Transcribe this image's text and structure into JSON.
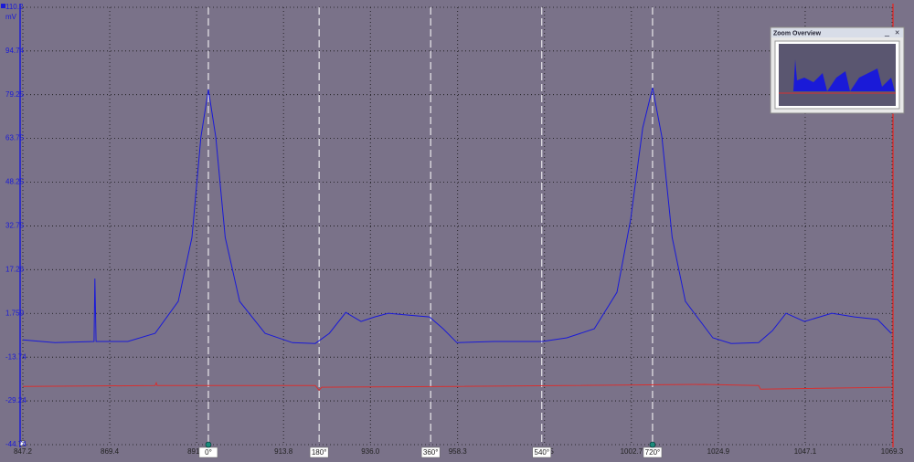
{
  "chart_data": {
    "type": "line",
    "y_unit": "mV",
    "x": [
      847.2,
      855.4,
      865.4,
      865.6,
      865.9,
      874.0,
      881.0,
      886.9,
      890.4,
      892.7,
      894.6,
      896.5,
      898.9,
      902.6,
      909.1,
      916.1,
      921.9,
      925.5,
      929.7,
      933.6,
      937.1,
      940.6,
      945.3,
      951.1,
      954.6,
      958.1,
      967.5,
      979.9,
      986.2,
      993.2,
      999.0,
      1002.5,
      1005.6,
      1008.1,
      1010.5,
      1013.1,
      1016.5,
      1023.5,
      1028.2,
      1035.2,
      1038.7,
      1042.2,
      1046.9,
      1053.9,
      1059.7,
      1065.6,
      1069.1
    ],
    "series": [
      {
        "color": "#1a1ad8",
        "values": [
          -7.6,
          -8.6,
          -8.2,
          14.1,
          -8.2,
          -8.2,
          -5.3,
          6.0,
          28.7,
          64.2,
          81.1,
          64.2,
          28.7,
          6.0,
          -5.3,
          -8.6,
          -8.9,
          -5.3,
          2.1,
          -1.1,
          0.5,
          1.8,
          1.2,
          0.5,
          -3.7,
          -8.6,
          -8.2,
          -8.2,
          -6.9,
          -3.7,
          9.2,
          35.1,
          67.5,
          81.7,
          64.2,
          28.7,
          6.0,
          -6.9,
          -8.9,
          -8.6,
          -4.4,
          1.8,
          -1.1,
          1.8,
          0.5,
          -0.4,
          -5.3
        ]
      }
    ],
    "x2": [
      847.2,
      881.0,
      881.3,
      881.5,
      921.9,
      922.9,
      923.6,
      958.1,
      1021.2,
      1035.2,
      1035.7,
      1069.1
    ],
    "series2": [
      {
        "color": "#d83030",
        "values": [
          -24.1,
          -23.8,
          -22.8,
          -23.8,
          -23.8,
          -25.4,
          -24.4,
          -24.1,
          -23.4,
          -23.8,
          -25.1,
          -24.4
        ]
      }
    ],
    "xlim": [
      847.2,
      1069.3
    ],
    "xticks": [
      847.2,
      869.4,
      891.6,
      913.8,
      {
        "value": 936,
        "label": "936.0"
      },
      958.3,
      980.5,
      1002.7,
      1024.9,
      1047.1,
      1069.3
    ],
    "ylim": [
      -44.74,
      110.2
    ],
    "yticks": [
      -44.74,
      -29.24,
      -13.74,
      1.759,
      17.26,
      32.75,
      48.25,
      63.75,
      79.25,
      94.74,
      110.2
    ],
    "grid": true,
    "rulers": [
      {
        "value": 894.6,
        "label": "0°"
      },
      {
        "value": 922.9,
        "label": "180°"
      },
      {
        "value": 951.4,
        "label": "360°"
      },
      {
        "value": 979.8,
        "label": "540°"
      },
      {
        "value": 1008.1,
        "label": "720°"
      }
    ],
    "zoom_overview": {
      "title": "Zoom Overview",
      "minimize": "_",
      "close": "×"
    }
  }
}
